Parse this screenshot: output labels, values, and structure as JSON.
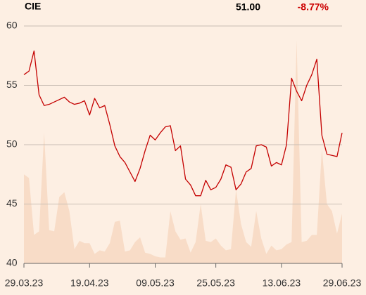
{
  "chart_data": {
    "type": "line",
    "title": "CIE",
    "price": "51.00",
    "change": "-8.77%",
    "change_color": "#cc0000",
    "x": [
      "29.03.23",
      "30.03.23",
      "31.03.23",
      "03.04.23",
      "04.04.23",
      "05.04.23",
      "06.04.23",
      "11.04.23",
      "12.04.23",
      "13.04.23",
      "14.04.23",
      "17.04.23",
      "18.04.23",
      "19.04.23",
      "20.04.23",
      "21.04.23",
      "24.04.23",
      "25.04.23",
      "26.04.23",
      "27.04.23",
      "28.04.23",
      "02.05.23",
      "03.05.23",
      "04.05.23",
      "05.05.23",
      "08.05.23",
      "09.05.23",
      "10.05.23",
      "11.05.23",
      "12.05.23",
      "15.05.23",
      "16.05.23",
      "17.05.23",
      "18.05.23",
      "19.05.23",
      "22.05.23",
      "23.05.23",
      "24.05.23",
      "25.05.23",
      "26.05.23",
      "29.05.23",
      "30.05.23",
      "31.05.23",
      "01.06.23",
      "02.06.23",
      "05.06.23",
      "06.06.23",
      "07.06.23",
      "08.06.23",
      "09.06.23",
      "12.06.23",
      "13.06.23",
      "14.06.23",
      "15.06.23",
      "16.06.23",
      "19.06.23",
      "20.06.23",
      "21.06.23",
      "22.06.23",
      "23.06.23",
      "26.06.23",
      "27.06.23",
      "28.06.23",
      "29.06.23"
    ],
    "series": [
      {
        "color": "#c40000",
        "values": [
          55.9,
          56.2,
          57.9,
          54.2,
          53.3,
          53.4,
          53.6,
          53.8,
          54.0,
          53.6,
          53.4,
          53.5,
          53.7,
          52.5,
          53.9,
          53.1,
          53.3,
          51.7,
          49.9,
          49.0,
          48.5,
          47.7,
          46.9,
          48.0,
          49.5,
          50.8,
          50.4,
          51.0,
          51.5,
          51.6,
          49.5,
          49.9,
          47.1,
          46.6,
          45.7,
          45.7,
          47.0,
          46.2,
          46.4,
          47.1,
          48.3,
          48.1,
          46.2,
          46.7,
          47.7,
          48.0,
          49.9,
          50.0,
          49.8,
          48.2,
          48.5,
          48.3,
          50.0,
          55.6,
          54.5,
          53.7,
          55.0,
          55.9,
          57.2,
          50.8,
          49.2,
          49.1,
          49.0,
          51.0
        ]
      }
    ],
    "volume": {
      "color": "#f8dcc7",
      "values": [
        47.5,
        47.2,
        42.4,
        42.7,
        51.0,
        42.8,
        42.7,
        45.6,
        46.0,
        44.4,
        41.2,
        41.9,
        41.7,
        41.7,
        40.8,
        41.1,
        41.0,
        41.7,
        43.5,
        43.6,
        41.0,
        41.1,
        41.8,
        42.2,
        40.9,
        40.8,
        40.6,
        40.5,
        40.5,
        44.4,
        42.7,
        42.0,
        42.1,
        40.9,
        41.8,
        45.0,
        41.9,
        41.8,
        42.1,
        41.5,
        41.1,
        41.2,
        46.2,
        43.3,
        41.8,
        41.4,
        44.4,
        42.1,
        40.8,
        41.5,
        41.1,
        41.2,
        41.6,
        41.8,
        58.8,
        41.8,
        41.9,
        42.4,
        42.4,
        49.6,
        45.0,
        44.4,
        42.5,
        44.2
      ]
    },
    "ylim": [
      40,
      60
    ],
    "yticks": [
      40,
      45,
      50,
      55,
      60
    ],
    "xticks": [
      "29.03.23",
      "19.04.23",
      "09.05.23",
      "25.05.23",
      "13.06.23",
      "29.06.23"
    ],
    "grid": true,
    "grid_color": "#c9beb4"
  }
}
